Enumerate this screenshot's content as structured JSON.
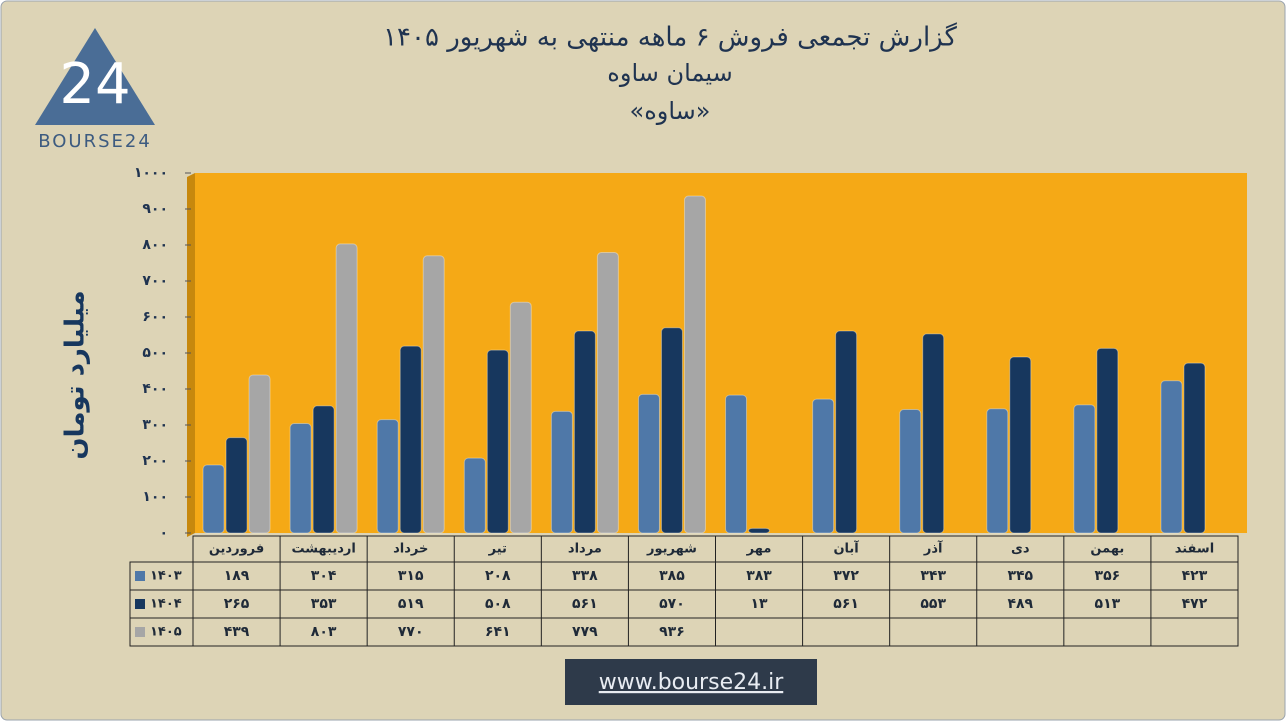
{
  "chart_data": {
    "type": "bar",
    "title": "گزارش تجمعی فروش ۶ ماهه منتهی به شهریور ۱۴۰۵",
    "subtitle": "سیمان ساوه",
    "symbol": "«ساوه»",
    "y_label": "میلیارد تومان",
    "categories": [
      "فروردین",
      "اردیبهشت",
      "خرداد",
      "تیر",
      "مرداد",
      "شهریور",
      "مهر",
      "آبان",
      "آذر",
      "دی",
      "بهمن",
      "اسفند"
    ],
    "series": [
      {
        "name": "۱۴۰۳",
        "color": "#4f78a8",
        "values": [
          189,
          304,
          315,
          208,
          338,
          385,
          383,
          372,
          343,
          345,
          356,
          423
        ],
        "value_labels": [
          "۱۸۹",
          "۳۰۴",
          "۳۱۵",
          "۲۰۸",
          "۳۳۸",
          "۳۸۵",
          "۳۸۳",
          "۳۷۲",
          "۳۴۳",
          "۳۴۵",
          "۳۵۶",
          "۴۲۳"
        ]
      },
      {
        "name": "۱۴۰۴",
        "color": "#17375e",
        "values": [
          265,
          353,
          519,
          508,
          561,
          570,
          13,
          561,
          553,
          489,
          513,
          472
        ],
        "value_labels": [
          "۲۶۵",
          "۳۵۳",
          "۵۱۹",
          "۵۰۸",
          "۵۶۱",
          "۵۷۰",
          "۱۳",
          "۵۶۱",
          "۵۵۳",
          "۴۸۹",
          "۵۱۳",
          "۴۷۲"
        ]
      },
      {
        "name": "۱۴۰۵",
        "color": "#a6a6a6",
        "values": [
          439,
          803,
          770,
          641,
          779,
          936,
          null,
          null,
          null,
          null,
          null,
          null
        ],
        "value_labels": [
          "۴۳۹",
          "۸۰۳",
          "۷۷۰",
          "۶۴۱",
          "۷۷۹",
          "۹۳۶",
          null,
          null,
          null,
          null,
          null,
          null
        ]
      }
    ],
    "ylim": [
      0,
      1000
    ],
    "yticks": [
      {
        "value": 0,
        "label": "۰"
      },
      {
        "value": 100,
        "label": "۱۰۰"
      },
      {
        "value": 200,
        "label": "۲۰۰"
      },
      {
        "value": 300,
        "label": "۳۰۰"
      },
      {
        "value": 400,
        "label": "۴۰۰"
      },
      {
        "value": 500,
        "label": "۵۰۰"
      },
      {
        "value": 600,
        "label": "۶۰۰"
      },
      {
        "value": 700,
        "label": "۷۰۰"
      },
      {
        "value": 800,
        "label": "۸۰۰"
      },
      {
        "value": 900,
        "label": "۹۰۰"
      },
      {
        "value": 1000,
        "label": "۱۰۰۰"
      }
    ],
    "grid": false,
    "plot_color": "#f5a916"
  },
  "logo": {
    "mark": "24",
    "text": "BOURSE24"
  },
  "footer": {
    "url": "www.bourse24.ir"
  }
}
